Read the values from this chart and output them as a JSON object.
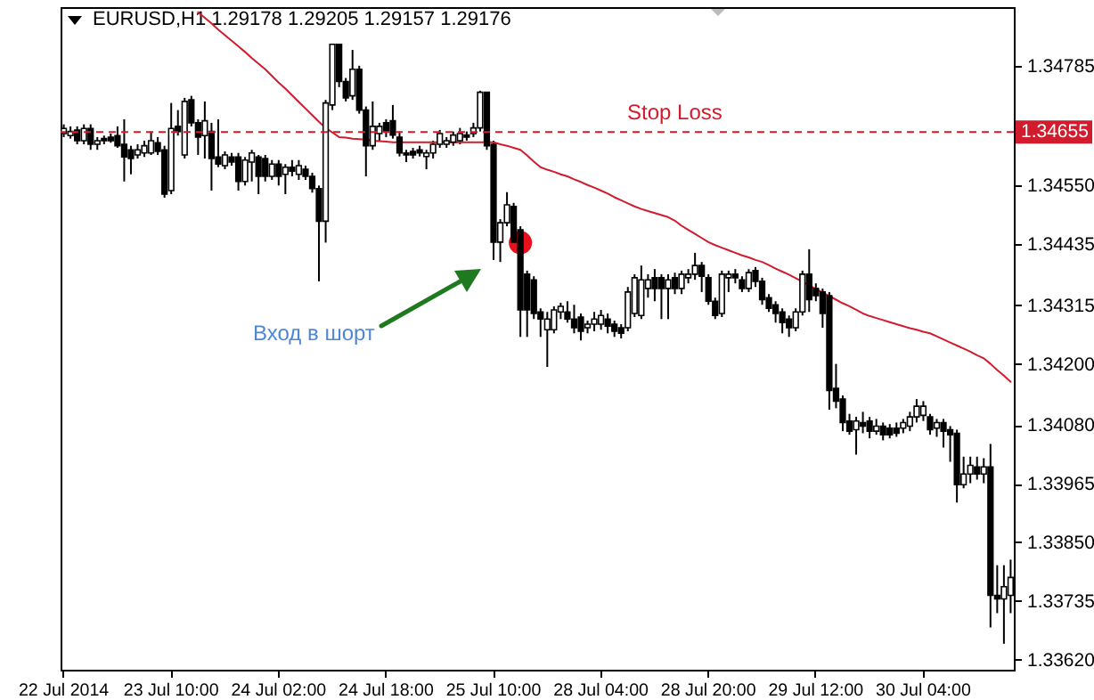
{
  "chart_data": {
    "type": "candlestick",
    "title": "EURUSD,H1  1.29178 1.29205 1.29157 1.29176",
    "categories": [
      "22 Jul 2014",
      null,
      null,
      null,
      null,
      null,
      null,
      null,
      null,
      null,
      null,
      null,
      null,
      null,
      null,
      null,
      "23 Jul 10:00",
      null,
      null,
      null,
      null,
      null,
      null,
      null,
      null,
      null,
      null,
      null,
      null,
      null,
      null,
      null,
      "24 Jul 02:00",
      null,
      null,
      null,
      null,
      null,
      null,
      null,
      null,
      null,
      null,
      null,
      null,
      null,
      null,
      null,
      "24 Jul 18:00",
      null,
      null,
      null,
      null,
      null,
      null,
      null,
      null,
      null,
      null,
      null,
      null,
      null,
      null,
      null,
      "25 Jul 10:00",
      null,
      null,
      null,
      null,
      null,
      null,
      null,
      null,
      null,
      null,
      null,
      null,
      null,
      null,
      null,
      "28 Jul 04:00",
      null,
      null,
      null,
      null,
      null,
      null,
      null,
      null,
      null,
      null,
      null,
      null,
      null,
      null,
      null,
      "28 Jul 20:00",
      null,
      null,
      null,
      null,
      null,
      null,
      null,
      null,
      null,
      null,
      null,
      null,
      null,
      null,
      null,
      "29 Jul 12:00",
      null,
      null,
      null,
      null,
      null,
      null,
      null,
      null,
      null,
      null,
      null,
      null,
      null,
      null,
      null,
      "30 Jul 04:00",
      null,
      null,
      null,
      null,
      null,
      null,
      null,
      null,
      null,
      null,
      null,
      null,
      null
    ],
    "ohlc": [
      [
        1.34652,
        1.3467,
        1.34645,
        1.34662
      ],
      [
        1.34648,
        1.34666,
        1.34642,
        1.34656
      ],
      [
        1.34659,
        1.34666,
        1.34631,
        1.34638
      ],
      [
        1.34638,
        1.3467,
        1.34631,
        1.34662
      ],
      [
        1.34662,
        1.3467,
        1.3462,
        1.34631
      ],
      [
        1.34631,
        1.34645,
        1.3462,
        1.34638
      ],
      [
        1.34642,
        1.34648,
        1.34631,
        1.34638
      ],
      [
        1.34645,
        1.34652,
        1.34634,
        1.34638
      ],
      [
        1.34648,
        1.34666,
        1.34624,
        1.34628
      ],
      [
        1.34631,
        1.3468,
        1.34558,
        1.34606
      ],
      [
        1.3462,
        1.34628,
        1.34572,
        1.34603
      ],
      [
        1.3461,
        1.34631,
        1.34603,
        1.3462
      ],
      [
        1.34614,
        1.34638,
        1.34606,
        1.34628
      ],
      [
        1.34614,
        1.34656,
        1.3461,
        1.34638
      ],
      [
        1.34634,
        1.34645,
        1.3461,
        1.34617
      ],
      [
        1.3462,
        1.34628,
        1.34526,
        1.34533
      ],
      [
        1.3454,
        1.34712,
        1.34533,
        1.34662
      ],
      [
        1.34666,
        1.34698,
        1.34648,
        1.34656
      ],
      [
        1.3461,
        1.34722,
        1.34603,
        1.34715
      ],
      [
        1.34718,
        1.34726,
        1.34666,
        1.34673
      ],
      [
        1.34673,
        1.3468,
        1.3461,
        1.34645
      ],
      [
        1.34648,
        1.34715,
        1.34603,
        1.34677
      ],
      [
        1.34656,
        1.34673,
        1.3454,
        1.34603
      ],
      [
        1.34606,
        1.3468,
        1.34586,
        1.34592
      ],
      [
        1.34589,
        1.34617,
        1.34582,
        1.3461
      ],
      [
        1.34606,
        1.34614,
        1.34589,
        1.34596
      ],
      [
        1.34606,
        1.34614,
        1.3454,
        1.34558
      ],
      [
        1.34558,
        1.34606,
        1.3455,
        1.346
      ],
      [
        1.34596,
        1.3462,
        1.34558,
        1.34614
      ],
      [
        1.34606,
        1.3461,
        1.34533,
        1.34568
      ],
      [
        1.34603,
        1.3461,
        1.34558,
        1.34568
      ],
      [
        1.34568,
        1.346,
        1.34561,
        1.34592
      ],
      [
        1.34592,
        1.346,
        1.3455,
        1.34568
      ],
      [
        1.34572,
        1.34592,
        1.34533,
        1.34586
      ],
      [
        1.34586,
        1.346,
        1.34568,
        1.34578
      ],
      [
        1.34572,
        1.346,
        1.34561,
        1.34589
      ],
      [
        1.34582,
        1.34589,
        1.34561,
        1.34568
      ],
      [
        1.34568,
        1.34575,
        1.34536,
        1.34544
      ],
      [
        1.34544,
        1.3455,
        1.34362,
        1.3448
      ],
      [
        1.3448,
        1.34718,
        1.34438,
        1.34712
      ],
      [
        1.34708,
        1.34827,
        1.34698,
        1.34827
      ],
      [
        1.34827,
        1.34827,
        1.34743,
        1.34754
      ],
      [
        1.34754,
        1.34761,
        1.34715,
        1.34722
      ],
      [
        1.34726,
        1.34816,
        1.34718,
        1.34778
      ],
      [
        1.34778,
        1.34785,
        1.34691,
        1.34698
      ],
      [
        1.34698,
        1.34705,
        1.34568,
        1.34628
      ],
      [
        1.34628,
        1.34715,
        1.3462,
        1.34666
      ],
      [
        1.34652,
        1.34673,
        1.34638,
        1.34666
      ],
      [
        1.34673,
        1.3468,
        1.34645,
        1.34656
      ],
      [
        1.34677,
        1.34708,
        1.34642,
        1.34649
      ],
      [
        1.34645,
        1.34656,
        1.34607,
        1.34614
      ],
      [
        1.34614,
        1.3462,
        1.34596,
        1.3461
      ],
      [
        1.34617,
        1.34624,
        1.34603,
        1.3461
      ],
      [
        1.3462,
        1.34628,
        1.34607,
        1.34614
      ],
      [
        1.34607,
        1.3462,
        1.34582,
        1.34614
      ],
      [
        1.34614,
        1.34638,
        1.34603,
        1.34631
      ],
      [
        1.34631,
        1.34659,
        1.34624,
        1.34652
      ],
      [
        1.34631,
        1.34645,
        1.34624,
        1.34638
      ],
      [
        1.34635,
        1.34656,
        1.34628,
        1.34649
      ],
      [
        1.34638,
        1.34663,
        1.34631,
        1.34652
      ],
      [
        1.34649,
        1.34656,
        1.34638,
        1.34645
      ],
      [
        1.34652,
        1.34673,
        1.34645,
        1.34663
      ],
      [
        1.34663,
        1.34736,
        1.34656,
        1.34733
      ],
      [
        1.34733,
        1.34733,
        1.3462,
        1.34628
      ],
      [
        1.34631,
        1.34638,
        1.34404,
        1.34439
      ],
      [
        1.34439,
        1.34484,
        1.344,
        1.34477
      ],
      [
        1.34477,
        1.34537,
        1.3447,
        1.34512
      ],
      [
        1.34509,
        1.34516,
        1.34432,
        1.34439
      ],
      [
        1.34463,
        1.3447,
        1.34253,
        1.34306
      ],
      [
        1.34376,
        1.34383,
        1.34253,
        1.34306
      ],
      [
        1.34365,
        1.34372,
        1.34288,
        1.34299
      ],
      [
        1.34302,
        1.34309,
        1.34253,
        1.34288
      ],
      [
        1.34267,
        1.34302,
        1.34194,
        1.34288
      ],
      [
        1.34267,
        1.34313,
        1.3426,
        1.34306
      ],
      [
        1.34302,
        1.3432,
        1.34288,
        1.34313
      ],
      [
        1.34302,
        1.34323,
        1.34281,
        1.34288
      ],
      [
        1.34288,
        1.34316,
        1.3426,
        1.34271
      ],
      [
        1.34292,
        1.34299,
        1.34246,
        1.34264
      ],
      [
        1.34271,
        1.34285,
        1.3426,
        1.34278
      ],
      [
        1.34278,
        1.34302,
        1.34264,
        1.34288
      ],
      [
        1.34278,
        1.34306,
        1.34267,
        1.34295
      ],
      [
        1.34288,
        1.34299,
        1.3426,
        1.34274
      ],
      [
        1.34278,
        1.34285,
        1.34253,
        1.34264
      ],
      [
        1.34271,
        1.34278,
        1.3425,
        1.3426
      ],
      [
        1.34271,
        1.34351,
        1.34264,
        1.34341
      ],
      [
        1.34299,
        1.34376,
        1.34292,
        1.34369
      ],
      [
        1.34295,
        1.34393,
        1.34288,
        1.34365
      ],
      [
        1.34348,
        1.34376,
        1.3433,
        1.34365
      ],
      [
        1.34369,
        1.34386,
        1.34323,
        1.34348
      ],
      [
        1.34369,
        1.34376,
        1.34288,
        1.34348
      ],
      [
        1.34348,
        1.34376,
        1.34288,
        1.34365
      ],
      [
        1.34369,
        1.34379,
        1.34337,
        1.34348
      ],
      [
        1.34348,
        1.34383,
        1.34337,
        1.34376
      ],
      [
        1.34369,
        1.34386,
        1.34358,
        1.34376
      ],
      [
        1.34376,
        1.34418,
        1.34365,
        1.34393
      ],
      [
        1.34393,
        1.344,
        1.34341,
        1.34372
      ],
      [
        1.34369,
        1.34376,
        1.34316,
        1.34323
      ],
      [
        1.34323,
        1.3433,
        1.34288,
        1.34295
      ],
      [
        1.34299,
        1.34383,
        1.34292,
        1.34376
      ],
      [
        1.34369,
        1.34383,
        1.34341,
        1.34376
      ],
      [
        1.34376,
        1.34386,
        1.34358,
        1.34369
      ],
      [
        1.34365,
        1.34372,
        1.34341,
        1.34348
      ],
      [
        1.34348,
        1.34386,
        1.34341,
        1.34379
      ],
      [
        1.34383,
        1.3439,
        1.34351,
        1.34362
      ],
      [
        1.34362,
        1.34369,
        1.34316,
        1.34326
      ],
      [
        1.3433,
        1.34337,
        1.34302,
        1.34309
      ],
      [
        1.34316,
        1.34323,
        1.34281,
        1.34299
      ],
      [
        1.34302,
        1.34309,
        1.3426,
        1.34281
      ],
      [
        1.34288,
        1.34295,
        1.34253,
        1.34271
      ],
      [
        1.34271,
        1.34309,
        1.34264,
        1.34302
      ],
      [
        1.34302,
        1.34383,
        1.34295,
        1.34376
      ],
      [
        1.34376,
        1.34425,
        1.34302,
        1.34326
      ],
      [
        1.34348,
        1.34358,
        1.34323,
        1.34334
      ],
      [
        1.34341,
        1.34348,
        1.34271,
        1.34299
      ],
      [
        1.34334,
        1.34341,
        1.3411,
        1.34148
      ],
      [
        1.34152,
        1.342,
        1.34113,
        1.34127
      ],
      [
        1.34131,
        1.34138,
        1.34068,
        1.34085
      ],
      [
        1.34088,
        1.34102,
        1.34061,
        1.34068
      ],
      [
        1.34071,
        1.34096,
        1.34022,
        1.34088
      ],
      [
        1.34085,
        1.34106,
        1.34064,
        1.34078
      ],
      [
        1.34088,
        1.34096,
        1.34054,
        1.34068
      ],
      [
        1.34068,
        1.34092,
        1.34061,
        1.34078
      ],
      [
        1.34078,
        1.34085,
        1.3405,
        1.34061
      ],
      [
        1.34074,
        1.34082,
        1.34054,
        1.34061
      ],
      [
        1.34074,
        1.34085,
        1.34057,
        1.34064
      ],
      [
        1.34074,
        1.34092,
        1.34064,
        1.34085
      ],
      [
        1.34078,
        1.34106,
        1.34068,
        1.34096
      ],
      [
        1.34096,
        1.34131,
        1.34085,
        1.34117
      ],
      [
        1.34099,
        1.34127,
        1.34088,
        1.34117
      ],
      [
        1.34096,
        1.34102,
        1.34061,
        1.34071
      ],
      [
        1.34074,
        1.34092,
        1.34057,
        1.34085
      ],
      [
        1.34085,
        1.34092,
        1.34036,
        1.34068
      ],
      [
        1.34071,
        1.34078,
        1.34008,
        1.34061
      ],
      [
        1.34064,
        1.34071,
        1.33928,
        1.33963
      ],
      [
        1.33963,
        1.34018,
        1.33956,
        1.33984
      ],
      [
        1.33984,
        1.34018,
        1.33966,
        1.34001
      ],
      [
        1.33998,
        1.34018,
        1.33973,
        1.33984
      ],
      [
        1.33984,
        1.34015,
        1.33966,
        1.33998
      ],
      [
        1.33998,
        1.34043,
        1.33683,
        1.33746
      ],
      [
        1.33746,
        1.33805,
        1.33711,
        1.33739
      ],
      [
        1.33739,
        1.33805,
        1.33651,
        1.33763
      ],
      [
        1.33746,
        1.33816,
        1.33711,
        1.33781
      ]
    ],
    "series": [
      {
        "type": "line",
        "color": "#d01c2c",
        "values": [
          null,
          null,
          null,
          null,
          null,
          null,
          null,
          null,
          null,
          null,
          null,
          null,
          null,
          null,
          null,
          null,
          null,
          null,
          null,
          null,
          1.3489,
          1.34879,
          1.34868,
          1.34856,
          1.34845,
          1.34834,
          1.34823,
          1.34812,
          1.348,
          1.34789,
          1.34778,
          1.34765,
          1.34752,
          1.3474,
          1.34727,
          1.34714,
          1.34701,
          1.34688,
          1.34675,
          1.34663,
          1.34654,
          1.34645,
          1.34644,
          1.34642,
          1.34641,
          1.3464,
          1.34638,
          1.34637,
          1.34636,
          1.34635,
          1.34635,
          1.34635,
          1.34635,
          1.34635,
          1.34635,
          1.34635,
          1.34635,
          1.34635,
          1.34635,
          1.34635,
          1.34635,
          1.34635,
          1.34635,
          1.34635,
          1.34635,
          1.34631,
          1.34628,
          1.34624,
          1.3462,
          1.34609,
          1.34597,
          1.34586,
          1.34581,
          1.34577,
          1.34572,
          1.34568,
          1.34562,
          1.34557,
          1.34551,
          1.34546,
          1.3454,
          1.34534,
          1.34527,
          1.34521,
          1.34515,
          1.34509,
          1.34504,
          1.345,
          1.34496,
          1.34492,
          1.34488,
          1.34481,
          1.34471,
          1.34463,
          1.34455,
          1.34447,
          1.34439,
          1.34433,
          1.34428,
          1.34423,
          1.34418,
          1.34413,
          1.34409,
          1.34404,
          1.344,
          1.34394,
          1.34387,
          1.34381,
          1.34375,
          1.34368,
          1.34361,
          1.34354,
          1.34347,
          1.3434,
          1.34333,
          1.34326,
          1.34319,
          1.34313,
          1.34306,
          1.34299,
          1.34294,
          1.3429,
          1.34286,
          1.34282,
          1.34278,
          1.34274,
          1.3427,
          1.34267,
          1.34263,
          1.3426,
          1.34254,
          1.34248,
          1.34242,
          1.34236,
          1.3423,
          1.34224,
          1.34217,
          1.34211,
          1.342,
          1.34188,
          1.34177,
          1.34165
        ]
      },
      {
        "type": "scatter",
        "color": "#e8101c",
        "values": [
          null,
          null,
          null,
          null,
          null,
          null,
          null,
          null,
          null,
          null,
          null,
          null,
          null,
          null,
          null,
          null,
          null,
          null,
          null,
          null,
          null,
          null,
          null,
          null,
          null,
          null,
          null,
          null,
          null,
          null,
          null,
          null,
          null,
          null,
          null,
          null,
          null,
          null,
          null,
          null,
          null,
          null,
          null,
          null,
          null,
          null,
          null,
          null,
          null,
          null,
          null,
          null,
          null,
          null,
          null,
          null,
          null,
          null,
          null,
          null,
          null,
          null,
          null,
          null,
          null,
          null,
          null,
          null,
          1.34438,
          null,
          null,
          null,
          null,
          null,
          null,
          null,
          null,
          null,
          null,
          null,
          null,
          null,
          null,
          null,
          null,
          null,
          null,
          null,
          null,
          null,
          null,
          null,
          null,
          null,
          null,
          null,
          null,
          null,
          null,
          null,
          null,
          null,
          null,
          null,
          null,
          null,
          null,
          null,
          null,
          null,
          null,
          null,
          null,
          null,
          null,
          null,
          null,
          null,
          null,
          null,
          null,
          null,
          null,
          null,
          null,
          null,
          null,
          null,
          null,
          null,
          null,
          null,
          null,
          null,
          null,
          null,
          null,
          null,
          null,
          null,
          null,
          null
        ]
      }
    ],
    "ylim": [
      1.336,
      1.349
    ],
    "yticks": [
      1.34785,
      {
        "value": 1.3455,
        "label": "1.34550"
      },
      1.34435,
      1.34315,
      {
        "value": 1.342,
        "label": "1.34200"
      },
      {
        "value": 1.3408,
        "label": "1.34080"
      },
      1.33965,
      {
        "value": 1.3385,
        "label": "1.33850"
      },
      1.33735,
      {
        "value": 1.3362,
        "label": "1.33620"
      }
    ],
    "ref_lines": [
      {
        "axis": "y",
        "value": 1.34655,
        "label": "Stop Loss",
        "color": "#d01c2c",
        "line_style": "dashed"
      }
    ],
    "annotations": [
      "Вход в шорт",
      {
        "text": "1.34655",
        "y": 1.34655
      }
    ]
  }
}
